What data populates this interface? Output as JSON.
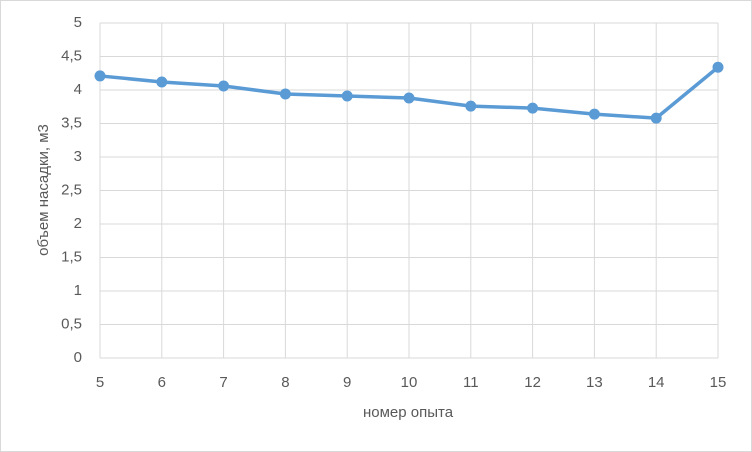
{
  "chart_data": {
    "type": "line",
    "x_label": "номер опыта",
    "y_label": "объем насадки, м3",
    "x": [
      5,
      6,
      7,
      8,
      9,
      10,
      11,
      12,
      13,
      14,
      15
    ],
    "series": [
      {
        "color": "#5b9bd5",
        "values": [
          4.21,
          4.12,
          4.06,
          3.94,
          3.91,
          3.88,
          3.76,
          3.73,
          3.64,
          3.58,
          4.34
        ]
      }
    ],
    "xlim": [
      5,
      15
    ],
    "xticks": [
      5,
      6,
      7,
      8,
      9,
      10,
      11,
      12,
      13,
      14,
      15
    ],
    "ylim": [
      0,
      5
    ],
    "yticks": [
      0,
      {
        "value": 0.5,
        "label": "0,5"
      },
      1,
      {
        "value": 1.5,
        "label": "1,5"
      },
      2,
      {
        "value": 2.5,
        "label": "2,5"
      },
      3,
      {
        "value": 3.5,
        "label": "3,5"
      },
      4,
      {
        "value": 4.5,
        "label": "4,5"
      },
      5
    ],
    "grid": true
  }
}
